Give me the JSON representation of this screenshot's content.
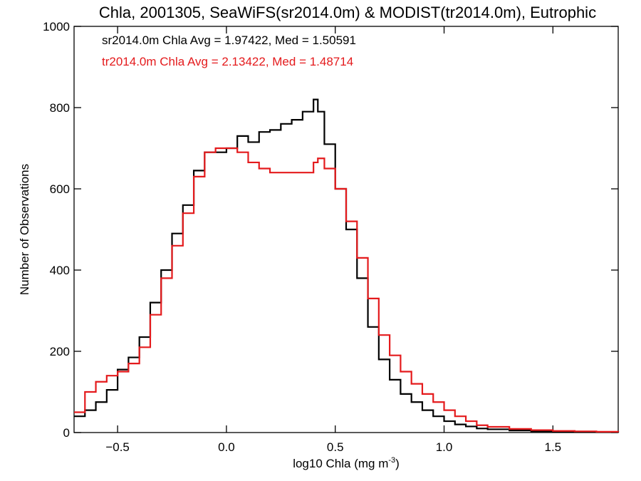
{
  "chart_data": {
    "type": "line",
    "title": "Chla, 2001305, SeaWiFS(sr2014.0m) & MODIST(tr2014.0m), Eutrophic",
    "xlabel": "log10 Chla (mg m",
    "xlabel_superscript": "-3",
    "xlabel_suffix": ")",
    "ylabel": "Number of Observations",
    "xlim": [
      -0.7,
      1.8
    ],
    "ylim": [
      0,
      1000
    ],
    "x_ticks": [
      -0.5,
      0.0,
      0.5,
      1.0,
      1.5
    ],
    "x_tick_labels": [
      "−0.5",
      "0.0",
      "0.5",
      "1.0",
      "1.5"
    ],
    "y_ticks": [
      0,
      200,
      400,
      600,
      800,
      1000
    ],
    "y_tick_labels": [
      "0",
      "200",
      "400",
      "600",
      "800",
      "1000"
    ],
    "grid": false,
    "legend_placement": "top-left",
    "series": [
      {
        "name": "sr2014.0m Chla Avg = 1.97422, Med = 1.50591",
        "color": "#000000",
        "x": [
          -0.7,
          -0.65,
          -0.6,
          -0.55,
          -0.5,
          -0.45,
          -0.4,
          -0.35,
          -0.3,
          -0.25,
          -0.2,
          -0.15,
          -0.1,
          -0.05,
          0.0,
          0.05,
          0.1,
          0.15,
          0.2,
          0.25,
          0.3,
          0.35,
          0.4,
          0.42,
          0.45,
          0.5,
          0.55,
          0.6,
          0.65,
          0.7,
          0.75,
          0.8,
          0.85,
          0.9,
          0.95,
          1.0,
          1.05,
          1.1,
          1.15,
          1.2,
          1.3,
          1.4,
          1.5,
          1.6,
          1.7,
          1.8
        ],
        "y": [
          40,
          55,
          75,
          105,
          155,
          185,
          235,
          320,
          400,
          490,
          560,
          645,
          690,
          690,
          700,
          730,
          715,
          740,
          745,
          760,
          770,
          790,
          820,
          790,
          710,
          600,
          500,
          380,
          260,
          180,
          130,
          95,
          75,
          55,
          40,
          28,
          20,
          15,
          10,
          8,
          5,
          3,
          2,
          1,
          1,
          0
        ]
      },
      {
        "name": "tr2014.0m Chla Avg = 2.13422, Med = 1.48714",
        "color": "#e41a1c",
        "x": [
          -0.7,
          -0.65,
          -0.6,
          -0.55,
          -0.5,
          -0.45,
          -0.4,
          -0.35,
          -0.3,
          -0.25,
          -0.2,
          -0.15,
          -0.1,
          -0.05,
          0.0,
          0.05,
          0.1,
          0.15,
          0.2,
          0.25,
          0.3,
          0.35,
          0.4,
          0.42,
          0.45,
          0.5,
          0.55,
          0.6,
          0.65,
          0.7,
          0.75,
          0.8,
          0.85,
          0.9,
          0.95,
          1.0,
          1.05,
          1.1,
          1.15,
          1.2,
          1.3,
          1.4,
          1.5,
          1.6,
          1.7,
          1.8
        ],
        "y": [
          50,
          100,
          125,
          140,
          150,
          170,
          210,
          290,
          380,
          460,
          540,
          630,
          690,
          700,
          700,
          690,
          665,
          650,
          640,
          640,
          640,
          640,
          665,
          675,
          650,
          600,
          520,
          430,
          330,
          240,
          190,
          150,
          120,
          95,
          75,
          55,
          40,
          28,
          18,
          14,
          9,
          6,
          4,
          3,
          2,
          1
        ]
      }
    ]
  }
}
